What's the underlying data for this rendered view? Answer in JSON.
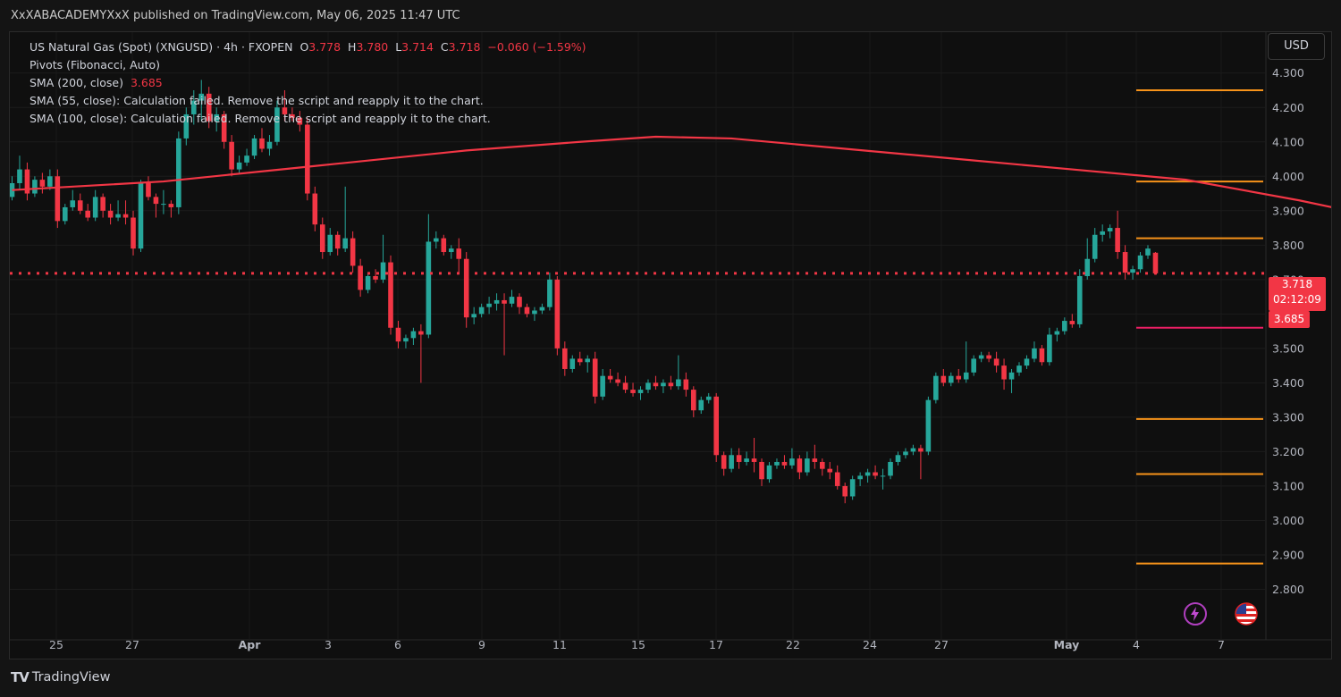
{
  "header": {
    "published": "XxXABACADEMYXxX published on TradingView.com, May 06, 2025 11:47 UTC"
  },
  "legend": {
    "symbol": "US Natural Gas (Spot) (XNGUSD) · 4h · FXOPEN",
    "o_label": "O",
    "o": "3.778",
    "h_label": "H",
    "h": "3.780",
    "l_label": "L",
    "l": "3.714",
    "c_label": "C",
    "c": "3.718",
    "change": "−0.060 (−1.59%)",
    "pivots": "Pivots (Fibonacci, Auto)",
    "sma200_label": "SMA (200, close)",
    "sma200_value": "3.685",
    "sma55": "SMA (55, close): Calculation failed. Remove the script and reapply it to the chart.",
    "sma100": "SMA (100, close): Calculation failed. Remove the script and reapply it to the chart."
  },
  "currency": "USD",
  "price_tag": {
    "price": "3.718",
    "countdown": "02:12:09"
  },
  "sma_tag": "3.685",
  "branding": {
    "name": "TradingView",
    "mark": "TV"
  },
  "icons": {
    "alert": "lightning-icon",
    "flag": "us-flag-icon"
  },
  "colors": {
    "up": "#26a69a",
    "down": "#f23645",
    "sma": "#f23645",
    "pivot": "#f7931a",
    "pivot_mid": "#e91e63"
  },
  "chart_data": {
    "type": "candlestick",
    "timeframe": "4h",
    "x_tick_labels": [
      "25",
      "27",
      "Apr",
      "3",
      "6",
      "9",
      "11",
      "15",
      "17",
      "22",
      "24",
      "27",
      "May",
      "4",
      "7"
    ],
    "y_ticks": [
      2.8,
      2.9,
      3.0,
      3.1,
      3.2,
      3.3,
      3.4,
      3.5,
      3.6,
      3.7,
      3.8,
      3.9,
      4.0,
      4.1,
      4.2,
      4.3
    ],
    "y_tick_labels": [
      "2.800",
      "2.900",
      "3.000",
      "3.100",
      "3.200",
      "3.300",
      "3.400",
      "3.500",
      "3.600",
      "3.700",
      "3.800",
      "3.900",
      "4.000",
      "4.100",
      "4.200",
      "4.300"
    ],
    "ylim": [
      2.7,
      4.385
    ],
    "last_price": 3.718,
    "pivot_levels": [
      4.25,
      3.985,
      3.82,
      3.56,
      3.295,
      3.135,
      2.875
    ],
    "sma200_points": [
      [
        0,
        3.96
      ],
      [
        20,
        3.985
      ],
      [
        40,
        4.03
      ],
      [
        60,
        4.075
      ],
      [
        75,
        4.1
      ],
      [
        85,
        4.115
      ],
      [
        95,
        4.11
      ],
      [
        110,
        4.08
      ],
      [
        125,
        4.05
      ],
      [
        140,
        4.02
      ],
      [
        155,
        3.99
      ],
      [
        170,
        3.93
      ],
      [
        185,
        3.86
      ],
      [
        200,
        3.78
      ],
      [
        215,
        3.74
      ],
      [
        230,
        3.715
      ],
      [
        243,
        3.695
      ],
      [
        248,
        3.688
      ]
    ],
    "candles": [
      [
        3.94,
        4.0,
        3.93,
        3.98
      ],
      [
        3.98,
        4.06,
        3.96,
        4.02
      ],
      [
        4.02,
        4.04,
        3.93,
        3.95
      ],
      [
        3.95,
        4.0,
        3.94,
        3.99
      ],
      [
        3.99,
        4.01,
        3.95,
        3.97
      ],
      [
        3.97,
        4.02,
        3.96,
        4.0
      ],
      [
        4.0,
        4.02,
        3.85,
        3.87
      ],
      [
        3.87,
        3.92,
        3.86,
        3.91
      ],
      [
        3.91,
        3.96,
        3.9,
        3.93
      ],
      [
        3.93,
        3.95,
        3.89,
        3.9
      ],
      [
        3.9,
        3.92,
        3.87,
        3.88
      ],
      [
        3.88,
        3.96,
        3.87,
        3.94
      ],
      [
        3.94,
        3.95,
        3.88,
        3.9
      ],
      [
        3.9,
        3.92,
        3.86,
        3.88
      ],
      [
        3.88,
        3.93,
        3.87,
        3.89
      ],
      [
        3.89,
        3.93,
        3.86,
        3.88
      ],
      [
        3.88,
        3.9,
        3.77,
        3.79
      ],
      [
        3.79,
        3.99,
        3.78,
        3.98
      ],
      [
        3.98,
        4.0,
        3.93,
        3.94
      ],
      [
        3.94,
        3.95,
        3.88,
        3.92
      ],
      [
        3.92,
        3.96,
        3.89,
        3.92
      ],
      [
        3.92,
        3.93,
        3.88,
        3.91
      ],
      [
        3.91,
        4.13,
        3.89,
        4.11
      ],
      [
        4.11,
        4.2,
        4.09,
        4.18
      ],
      [
        4.18,
        4.25,
        4.15,
        4.22
      ],
      [
        4.22,
        4.28,
        4.16,
        4.24
      ],
      [
        4.24,
        4.26,
        4.14,
        4.16
      ],
      [
        4.16,
        4.2,
        4.13,
        4.18
      ],
      [
        4.18,
        4.19,
        4.08,
        4.1
      ],
      [
        4.1,
        4.12,
        4.0,
        4.02
      ],
      [
        4.02,
        4.06,
        4.01,
        4.04
      ],
      [
        4.04,
        4.08,
        4.03,
        4.06
      ],
      [
        4.06,
        4.12,
        4.05,
        4.11
      ],
      [
        4.11,
        4.14,
        4.07,
        4.08
      ],
      [
        4.08,
        4.12,
        4.06,
        4.1
      ],
      [
        4.1,
        4.22,
        4.09,
        4.2
      ],
      [
        4.2,
        4.25,
        4.16,
        4.18
      ],
      [
        4.18,
        4.2,
        4.16,
        4.17
      ],
      [
        4.17,
        4.19,
        4.13,
        4.15
      ],
      [
        4.15,
        4.17,
        3.93,
        3.95
      ],
      [
        3.95,
        3.97,
        3.84,
        3.86
      ],
      [
        3.86,
        3.88,
        3.76,
        3.78
      ],
      [
        3.78,
        3.85,
        3.77,
        3.83
      ],
      [
        3.83,
        3.84,
        3.77,
        3.79
      ],
      [
        3.79,
        3.97,
        3.78,
        3.82
      ],
      [
        3.82,
        3.84,
        3.72,
        3.74
      ],
      [
        3.74,
        3.76,
        3.65,
        3.67
      ],
      [
        3.67,
        3.72,
        3.66,
        3.71
      ],
      [
        3.71,
        3.73,
        3.69,
        3.7
      ],
      [
        3.7,
        3.83,
        3.69,
        3.75
      ],
      [
        3.75,
        3.77,
        3.54,
        3.56
      ],
      [
        3.56,
        3.58,
        3.5,
        3.52
      ],
      [
        3.52,
        3.54,
        3.5,
        3.53
      ],
      [
        3.53,
        3.56,
        3.51,
        3.55
      ],
      [
        3.55,
        3.57,
        3.4,
        3.54
      ],
      [
        3.54,
        3.89,
        3.53,
        3.81
      ],
      [
        3.81,
        3.84,
        3.79,
        3.82
      ],
      [
        3.82,
        3.83,
        3.77,
        3.78
      ],
      [
        3.78,
        3.8,
        3.76,
        3.79
      ],
      [
        3.79,
        3.82,
        3.72,
        3.76
      ],
      [
        3.76,
        3.78,
        3.56,
        3.59
      ],
      [
        3.59,
        3.62,
        3.57,
        3.6
      ],
      [
        3.6,
        3.63,
        3.59,
        3.62
      ],
      [
        3.62,
        3.65,
        3.6,
        3.63
      ],
      [
        3.63,
        3.66,
        3.61,
        3.64
      ],
      [
        3.64,
        3.66,
        3.48,
        3.63
      ],
      [
        3.63,
        3.67,
        3.62,
        3.65
      ],
      [
        3.65,
        3.66,
        3.6,
        3.62
      ],
      [
        3.62,
        3.63,
        3.59,
        3.6
      ],
      [
        3.6,
        3.62,
        3.58,
        3.61
      ],
      [
        3.61,
        3.63,
        3.6,
        3.62
      ],
      [
        3.62,
        3.72,
        3.61,
        3.7
      ],
      [
        3.7,
        3.71,
        3.48,
        3.5
      ],
      [
        3.5,
        3.52,
        3.42,
        3.44
      ],
      [
        3.44,
        3.48,
        3.43,
        3.47
      ],
      [
        3.47,
        3.49,
        3.45,
        3.46
      ],
      [
        3.46,
        3.48,
        3.43,
        3.47
      ],
      [
        3.47,
        3.49,
        3.34,
        3.36
      ],
      [
        3.36,
        3.44,
        3.35,
        3.42
      ],
      [
        3.42,
        3.44,
        3.4,
        3.41
      ],
      [
        3.41,
        3.43,
        3.39,
        3.4
      ],
      [
        3.4,
        3.42,
        3.37,
        3.38
      ],
      [
        3.38,
        3.4,
        3.36,
        3.37
      ],
      [
        3.37,
        3.39,
        3.35,
        3.38
      ],
      [
        3.38,
        3.41,
        3.37,
        3.4
      ],
      [
        3.4,
        3.42,
        3.38,
        3.39
      ],
      [
        3.39,
        3.41,
        3.37,
        3.4
      ],
      [
        3.4,
        3.42,
        3.38,
        3.39
      ],
      [
        3.39,
        3.48,
        3.38,
        3.41
      ],
      [
        3.41,
        3.43,
        3.36,
        3.38
      ],
      [
        3.38,
        3.39,
        3.3,
        3.32
      ],
      [
        3.32,
        3.36,
        3.31,
        3.35
      ],
      [
        3.35,
        3.37,
        3.34,
        3.36
      ],
      [
        3.36,
        3.37,
        3.17,
        3.19
      ],
      [
        3.19,
        3.2,
        3.13,
        3.15
      ],
      [
        3.15,
        3.21,
        3.14,
        3.19
      ],
      [
        3.19,
        3.21,
        3.15,
        3.17
      ],
      [
        3.17,
        3.2,
        3.16,
        3.18
      ],
      [
        3.18,
        3.24,
        3.14,
        3.17
      ],
      [
        3.17,
        3.18,
        3.1,
        3.12
      ],
      [
        3.12,
        3.17,
        3.11,
        3.16
      ],
      [
        3.16,
        3.18,
        3.15,
        3.17
      ],
      [
        3.17,
        3.19,
        3.15,
        3.16
      ],
      [
        3.16,
        3.21,
        3.15,
        3.18
      ],
      [
        3.18,
        3.19,
        3.12,
        3.14
      ],
      [
        3.14,
        3.2,
        3.13,
        3.18
      ],
      [
        3.18,
        3.22,
        3.15,
        3.17
      ],
      [
        3.17,
        3.18,
        3.13,
        3.15
      ],
      [
        3.15,
        3.17,
        3.12,
        3.14
      ],
      [
        3.14,
        3.16,
        3.09,
        3.1
      ],
      [
        3.1,
        3.11,
        3.05,
        3.07
      ],
      [
        3.07,
        3.13,
        3.06,
        3.12
      ],
      [
        3.12,
        3.14,
        3.1,
        3.13
      ],
      [
        3.13,
        3.15,
        3.11,
        3.14
      ],
      [
        3.14,
        3.16,
        3.12,
        3.13
      ],
      [
        3.13,
        3.15,
        3.09,
        3.13
      ],
      [
        3.13,
        3.18,
        3.12,
        3.17
      ],
      [
        3.17,
        3.2,
        3.16,
        3.19
      ],
      [
        3.19,
        3.21,
        3.18,
        3.2
      ],
      [
        3.2,
        3.22,
        3.19,
        3.21
      ],
      [
        3.21,
        3.22,
        3.12,
        3.2
      ],
      [
        3.2,
        3.36,
        3.19,
        3.35
      ],
      [
        3.35,
        3.43,
        3.34,
        3.42
      ],
      [
        3.42,
        3.44,
        3.39,
        3.4
      ],
      [
        3.4,
        3.43,
        3.39,
        3.42
      ],
      [
        3.42,
        3.44,
        3.4,
        3.41
      ],
      [
        3.41,
        3.52,
        3.4,
        3.43
      ],
      [
        3.43,
        3.48,
        3.42,
        3.47
      ],
      [
        3.47,
        3.49,
        3.46,
        3.48
      ],
      [
        3.48,
        3.49,
        3.46,
        3.47
      ],
      [
        3.47,
        3.49,
        3.43,
        3.45
      ],
      [
        3.45,
        3.47,
        3.38,
        3.41
      ],
      [
        3.41,
        3.44,
        3.37,
        3.43
      ],
      [
        3.43,
        3.46,
        3.42,
        3.45
      ],
      [
        3.45,
        3.48,
        3.44,
        3.47
      ],
      [
        3.47,
        3.52,
        3.46,
        3.5
      ],
      [
        3.5,
        3.51,
        3.45,
        3.46
      ],
      [
        3.46,
        3.56,
        3.45,
        3.54
      ],
      [
        3.54,
        3.56,
        3.52,
        3.55
      ],
      [
        3.55,
        3.59,
        3.54,
        3.58
      ],
      [
        3.58,
        3.6,
        3.56,
        3.57
      ],
      [
        3.57,
        3.73,
        3.56,
        3.71
      ],
      [
        3.71,
        3.82,
        3.7,
        3.76
      ],
      [
        3.76,
        3.85,
        3.75,
        3.83
      ],
      [
        3.83,
        3.86,
        3.81,
        3.84
      ],
      [
        3.84,
        3.86,
        3.82,
        3.85
      ],
      [
        3.85,
        3.9,
        3.76,
        3.78
      ],
      [
        3.78,
        3.8,
        3.7,
        3.72
      ],
      [
        3.72,
        3.74,
        3.7,
        3.73
      ],
      [
        3.73,
        3.78,
        3.72,
        3.77
      ],
      [
        3.77,
        3.8,
        3.76,
        3.79
      ],
      [
        3.778,
        3.78,
        3.714,
        3.718
      ]
    ]
  }
}
